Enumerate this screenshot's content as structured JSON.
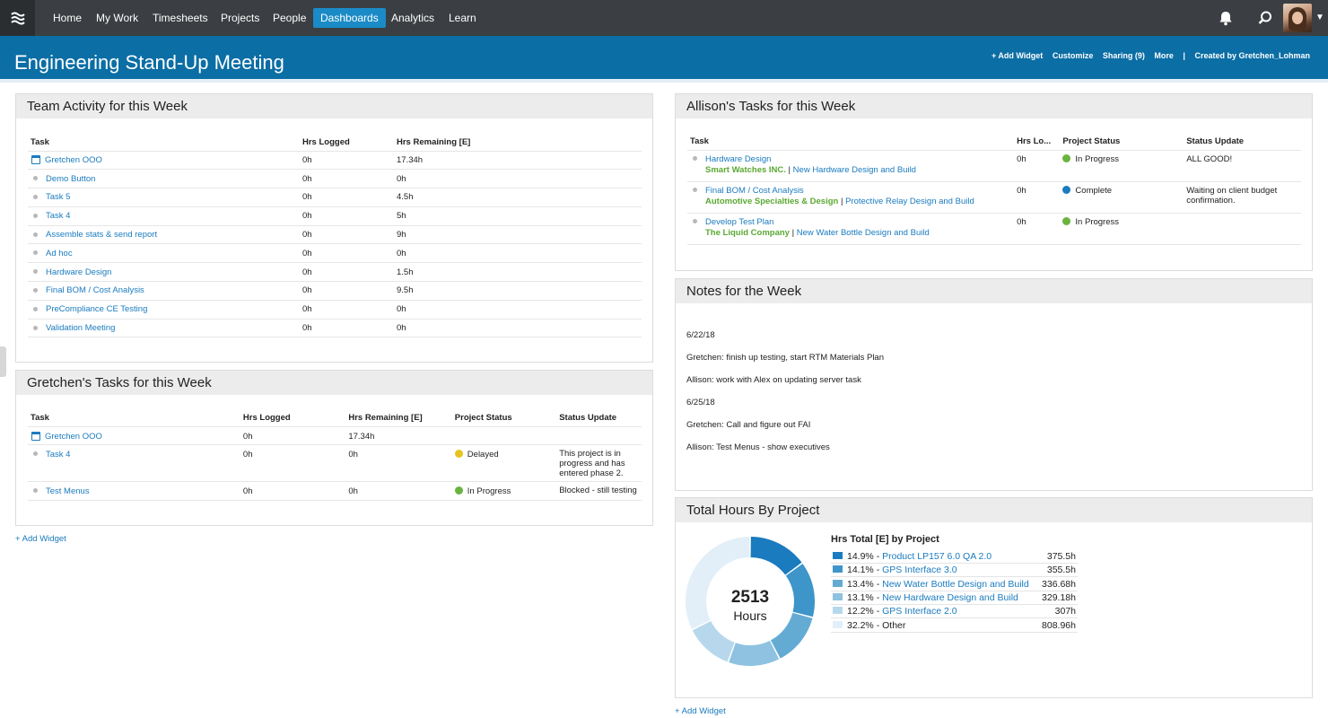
{
  "nav": {
    "items": [
      "Home",
      "My Work",
      "Timesheets",
      "Projects",
      "People",
      "Dashboards",
      "Analytics",
      "Learn"
    ],
    "active": "Dashboards"
  },
  "header": {
    "title": "Engineering Stand-Up Meeting",
    "links": [
      "+ Add Widget",
      "Customize",
      "Sharing (9)",
      "More",
      "|",
      "Created by Gretchen_Lohman"
    ]
  },
  "team_activity": {
    "title": "Team Activity for this Week",
    "columns": [
      "Task",
      "Hrs Logged",
      "Hrs Remaining [E]"
    ],
    "rows": [
      {
        "task": "Gretchen OOO",
        "icon": "calendar",
        "logged": "0h",
        "remaining": "17.34h"
      },
      {
        "task": "Demo Button",
        "icon": "bullet",
        "logged": "0h",
        "remaining": "0h"
      },
      {
        "task": "Task 5",
        "icon": "bullet",
        "logged": "0h",
        "remaining": "4.5h"
      },
      {
        "task": "Task 4",
        "icon": "bullet",
        "logged": "0h",
        "remaining": "5h"
      },
      {
        "task": "Assemble stats & send report",
        "icon": "bullet",
        "logged": "0h",
        "remaining": "9h"
      },
      {
        "task": "Ad hoc",
        "icon": "bullet",
        "logged": "0h",
        "remaining": "0h"
      },
      {
        "task": "Hardware Design",
        "icon": "bullet",
        "logged": "0h",
        "remaining": "1.5h"
      },
      {
        "task": "Final BOM / Cost Analysis",
        "icon": "bullet",
        "logged": "0h",
        "remaining": "9.5h"
      },
      {
        "task": "PreCompliance CE Testing",
        "icon": "bullet",
        "logged": "0h",
        "remaining": "0h"
      },
      {
        "task": "Validation Meeting",
        "icon": "bullet",
        "logged": "0h",
        "remaining": "0h"
      }
    ]
  },
  "gretchen_tasks": {
    "title": "Gretchen's Tasks for this Week",
    "columns": [
      "Task",
      "Hrs Logged",
      "Hrs Remaining [E]",
      "Project Status",
      "Status Update"
    ],
    "rows": [
      {
        "task": "Gretchen OOO",
        "icon": "calendar",
        "logged": "0h",
        "remaining": "17.34h",
        "status": "",
        "status_color": "",
        "update": ""
      },
      {
        "task": "Task 4",
        "icon": "bullet",
        "logged": "0h",
        "remaining": "0h",
        "status": "Delayed",
        "status_color": "#e8c31f",
        "update": "This project is in progress and has entered phase 2."
      },
      {
        "task": "Test Menus",
        "icon": "bullet",
        "logged": "0h",
        "remaining": "0h",
        "status": "In Progress",
        "status_color": "#6ab43e",
        "update": "Blocked - still testing"
      }
    ]
  },
  "allison_tasks": {
    "title": "Allison's Tasks for this Week",
    "columns": [
      "Task",
      "Hrs Lo...",
      "Project Status",
      "Status Update"
    ],
    "rows": [
      {
        "task": "Hardware Design",
        "client": "Smart Watches INC.",
        "project": "New Hardware Design and Build",
        "logged": "0h",
        "status": "In Progress",
        "status_color": "#6ab43e",
        "update": "ALL GOOD!"
      },
      {
        "task": "Final BOM / Cost Analysis",
        "client": "Automotive Specialties & Design",
        "project": "Protective Relay Design and Build",
        "logged": "0h",
        "status": "Complete",
        "status_color": "#1a7bbf",
        "update": "Waiting on client budget confirmation."
      },
      {
        "task": "Develop Test Plan",
        "client": "The Liquid Company",
        "project": "New Water Bottle Design and Build",
        "logged": "0h",
        "status": "In Progress",
        "status_color": "#6ab43e",
        "update": ""
      }
    ]
  },
  "notes": {
    "title": "Notes for the Week",
    "lines": [
      "6/22/18",
      "Gretchen: finish up testing, start RTM Materials Plan",
      "Allison: work with Alex on updating server task",
      "6/25/18",
      "Gretchen: Call and figure out FAI",
      "Allison: Test Menus - show executives"
    ]
  },
  "total_hours": {
    "title": "Total Hours By Project",
    "center_value": "2513",
    "center_label": "Hours",
    "legend_title": "Hrs Total [E] by Project",
    "segments": [
      {
        "pct": "14.9%",
        "name": "Product LP157 6.0 QA 2.0",
        "hours": "375.5h",
        "value": 14.9,
        "color": "#1a7bbf",
        "link": true
      },
      {
        "pct": "14.1%",
        "name": "GPS Interface 3.0",
        "hours": "355.5h",
        "value": 14.1,
        "color": "#3d95c9",
        "link": true
      },
      {
        "pct": "13.4%",
        "name": "New Water Bottle Design and Build",
        "hours": "336.68h",
        "value": 13.4,
        "color": "#64abd4",
        "link": true
      },
      {
        "pct": "13.1%",
        "name": "New Hardware Design and Build",
        "hours": "329.18h",
        "value": 13.1,
        "color": "#8ec2e0",
        "link": true
      },
      {
        "pct": "12.2%",
        "name": "GPS Interface 2.0",
        "hours": "307h",
        "value": 12.2,
        "color": "#b7d8ec",
        "link": true
      },
      {
        "pct": "32.2%",
        "name": "Other",
        "hours": "808.96h",
        "value": 32.2,
        "color": "#e2eff8",
        "link": false
      }
    ]
  },
  "add_widget_label": "+ Add Widget"
}
